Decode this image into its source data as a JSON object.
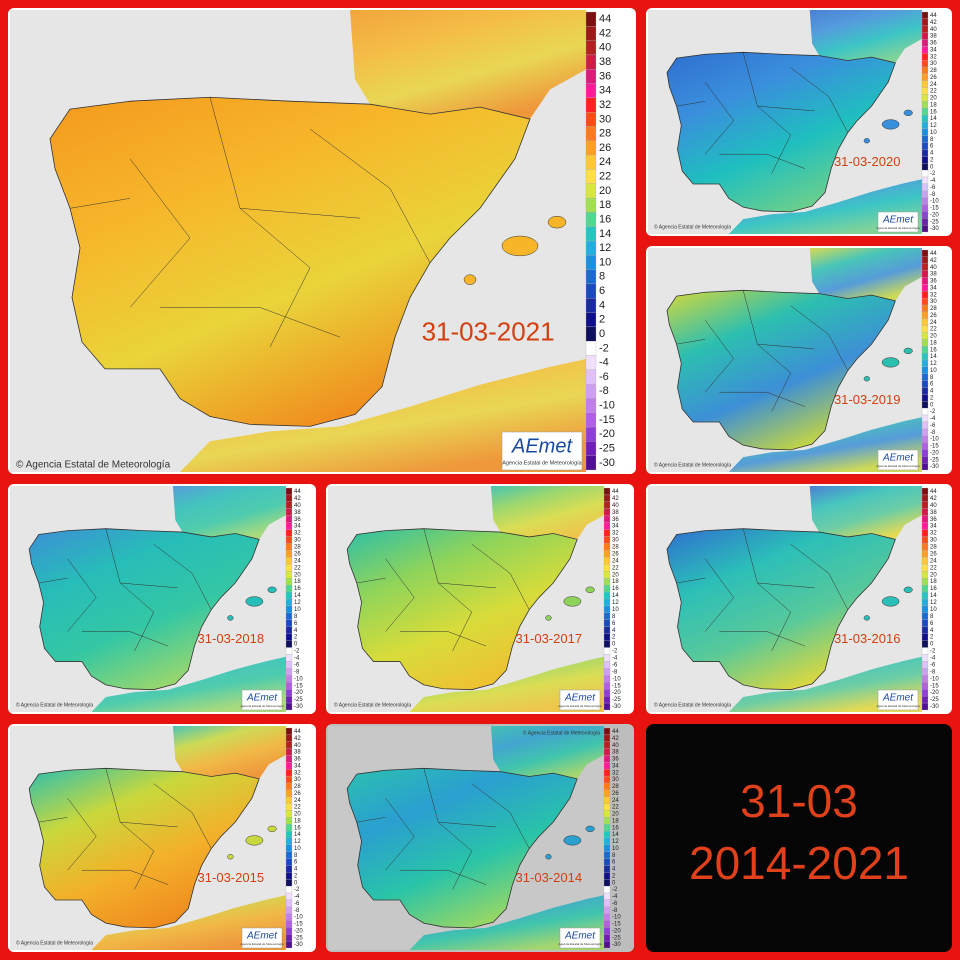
{
  "panels": [
    {
      "date": "31-03-2021",
      "colors": [
        "#f39a1e",
        "#f7b52a",
        "#e9d43a",
        "#f08a1c"
      ]
    },
    {
      "date": "31-03-2020",
      "colors": [
        "#2f6fd0",
        "#3a8fdc",
        "#1fbfbf",
        "#6fd08a"
      ]
    },
    {
      "date": "31-03-2019",
      "colors": [
        "#d7d83a",
        "#2cbfb0",
        "#3d8fd6",
        "#c9d83c"
      ]
    },
    {
      "date": "31-03-2018",
      "colors": [
        "#3d8fd6",
        "#27bdb8",
        "#34c7a4",
        "#9fd86a"
      ]
    },
    {
      "date": "31-03-2017",
      "colors": [
        "#2cbfa8",
        "#8fd45a",
        "#d8dc3a",
        "#f0c030"
      ]
    },
    {
      "date": "31-03-2016",
      "colors": [
        "#2f6fd0",
        "#2cbfb8",
        "#58c99a",
        "#e3d83a"
      ]
    },
    {
      "date": "31-03-2015",
      "colors": [
        "#2cbfb0",
        "#c9d83c",
        "#f3b02a",
        "#ef8a1e"
      ]
    },
    {
      "date": "31-03-2014",
      "colors": [
        "#2cc0b0",
        "#2a9fd0",
        "#29c4a8",
        "#9ed860"
      ],
      "credit_position": "top",
      "background": "#bdbdbd"
    }
  ],
  "legend": {
    "labels": [
      "44",
      "42",
      "40",
      "38",
      "36",
      "34",
      "32",
      "30",
      "28",
      "26",
      "24",
      "22",
      "20",
      "18",
      "16",
      "14",
      "12",
      "10",
      "8",
      "6",
      "4",
      "2",
      "0",
      "-2",
      "-4",
      "-6",
      "-8",
      "-10",
      "-15",
      "-20",
      "-25",
      "-30"
    ],
    "colors": [
      "#7a1010",
      "#9a1a1a",
      "#b52020",
      "#d01a4a",
      "#e01a7a",
      "#ff1a9a",
      "#ff2020",
      "#ff4a1a",
      "#ff7a1a",
      "#ffa020",
      "#ffc830",
      "#ffe040",
      "#d8e83a",
      "#a0e050",
      "#50d890",
      "#20c8c0",
      "#20b0e0",
      "#1a90e0",
      "#1a6ad0",
      "#1a4ac0",
      "#1a2aa0",
      "#10108a",
      "#101060",
      "#ffffff",
      "#f0e0ff",
      "#e0c0f8",
      "#d0a0f0",
      "#c080e8",
      "#b060e0",
      "#9040d0",
      "#7020b0",
      "#501090"
    ]
  },
  "credit": "© Agencia Estatal de Meteorología",
  "logo": "AEmet",
  "logo_caption": "Agencia Estatal de Meteorología",
  "summary": {
    "line1": "31-03",
    "line2": "2014-2021"
  }
}
